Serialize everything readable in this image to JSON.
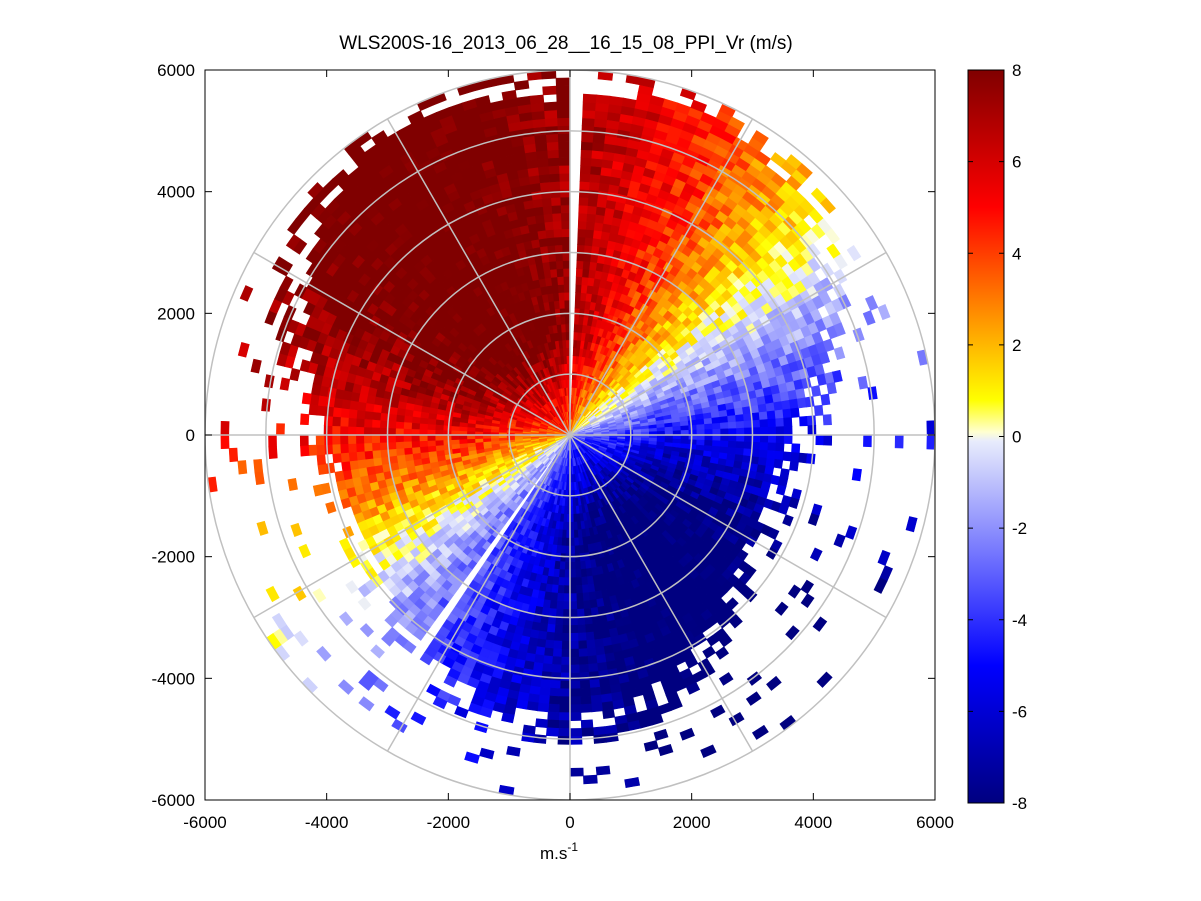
{
  "chart_data": {
    "type": "heatmap",
    "subtype": "polar-ppi",
    "title": "WLS200S-16_2013_06_28__16_15_08_PPI_Vr (m/s)",
    "xlabel": "m.s",
    "xlabel_superscript": "-1",
    "ylabel": "",
    "xlim": [
      -6000,
      6000
    ],
    "ylim": [
      -6000,
      6000
    ],
    "xticks": [
      -6000,
      -4000,
      -2000,
      0,
      2000,
      4000,
      6000
    ],
    "yticks": [
      -6000,
      -4000,
      -2000,
      0,
      2000,
      4000,
      6000
    ],
    "xtick_labels": [
      "-6000",
      "-4000",
      "-2000",
      "0",
      "2000",
      "4000",
      "6000"
    ],
    "ytick_labels": [
      "6000",
      "4000",
      "2000",
      "0",
      "-2000",
      "-4000",
      "-6000"
    ],
    "polar_grid": {
      "ring_radii": [
        1000,
        2000,
        3000,
        4000,
        5000,
        6000
      ],
      "spoke_angles_deg": [
        0,
        30,
        60,
        90,
        120,
        150,
        180,
        210,
        240,
        270,
        300,
        330
      ]
    },
    "colorbar": {
      "range": [
        -8,
        8
      ],
      "ticks": [
        8,
        6,
        4,
        2,
        0,
        -2,
        -4,
        -6,
        -8
      ],
      "tick_labels": [
        "8",
        "6",
        "4",
        "2",
        "0",
        "-2",
        "-4",
        "-6",
        "-8"
      ],
      "colormap": "blue-white-yellow-red",
      "stops": [
        {
          "v": -8,
          "c": "#000080"
        },
        {
          "v": -5,
          "c": "#0000ff"
        },
        {
          "v": -0.1,
          "c": "#e8ecfc"
        },
        {
          "v": 0.1,
          "c": "#ffffd0"
        },
        {
          "v": 0.8,
          "c": "#ffff00"
        },
        {
          "v": 2.5,
          "c": "#ff9900"
        },
        {
          "v": 5,
          "c": "#ff0000"
        },
        {
          "v": 8,
          "c": "#800000"
        }
      ]
    },
    "field_description_values": {
      "zero_line_azimuth_deg": 55,
      "max_velocity": 8,
      "min_velocity": -8,
      "max_range": 6000,
      "data_gap_azimuths_deg": [
        2,
        215
      ]
    }
  },
  "colors": {
    "background": "#ffffff",
    "grid": "#c0c0c0",
    "axis": "#000000"
  }
}
